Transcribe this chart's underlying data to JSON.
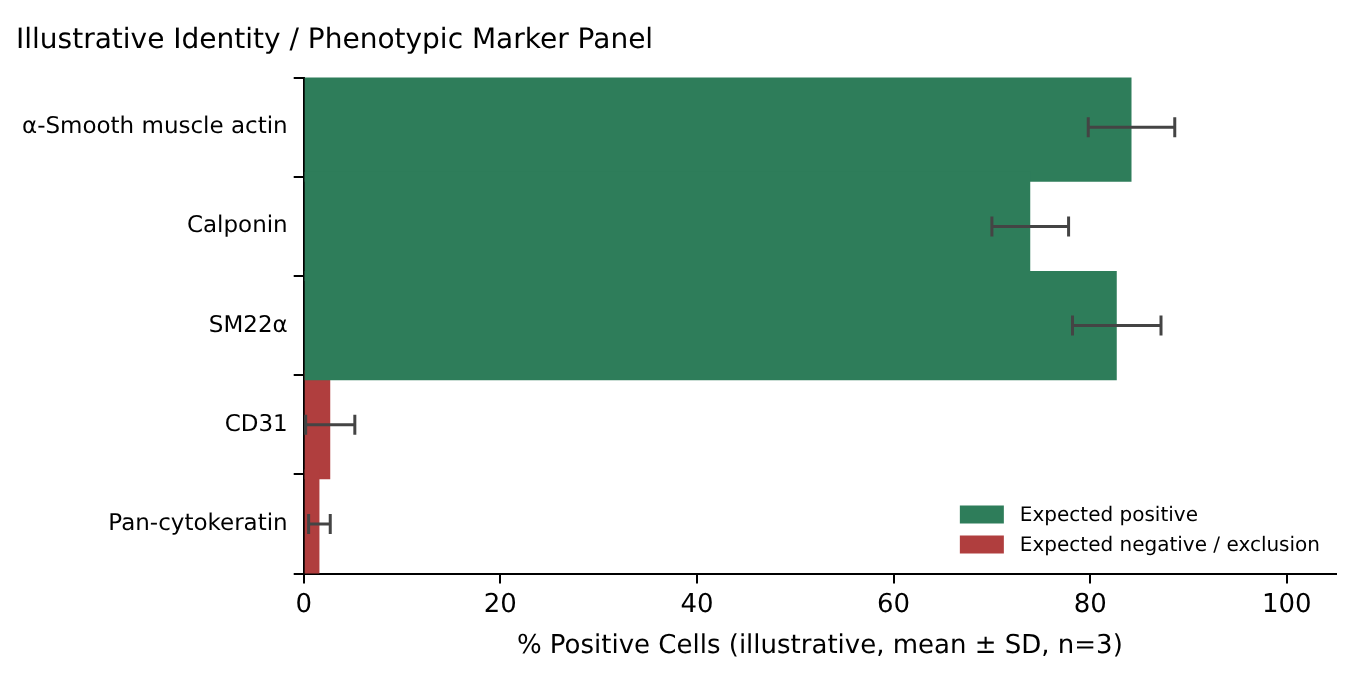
{
  "chart_data": {
    "type": "bar",
    "orientation": "horizontal",
    "title": "Illustrative Identity / Phenotypic Marker Panel",
    "xlabel": "% Positive Cells (illustrative, mean ± SD, n=3)",
    "categories": [
      "α-Smooth muscle actin",
      "Calponin",
      "SM22α",
      "CD31",
      "Pan-cytokeratin"
    ],
    "series": [
      {
        "name": "Expected positive",
        "color": "#2e7d5a",
        "values": [
          84.2,
          73.9,
          82.7,
          null,
          null
        ],
        "errors": [
          4.4,
          3.9,
          4.5,
          null,
          null
        ]
      },
      {
        "name": "Expected negative / exclusion",
        "color": "#b03e3e",
        "values": [
          null,
          null,
          null,
          2.7,
          1.6
        ],
        "errors": [
          null,
          null,
          null,
          2.5,
          1.1
        ]
      }
    ],
    "xlim": [
      0,
      105
    ],
    "xticks": [
      0,
      20,
      40,
      60,
      80,
      100
    ],
    "grid": false,
    "legend": "bottom right"
  }
}
